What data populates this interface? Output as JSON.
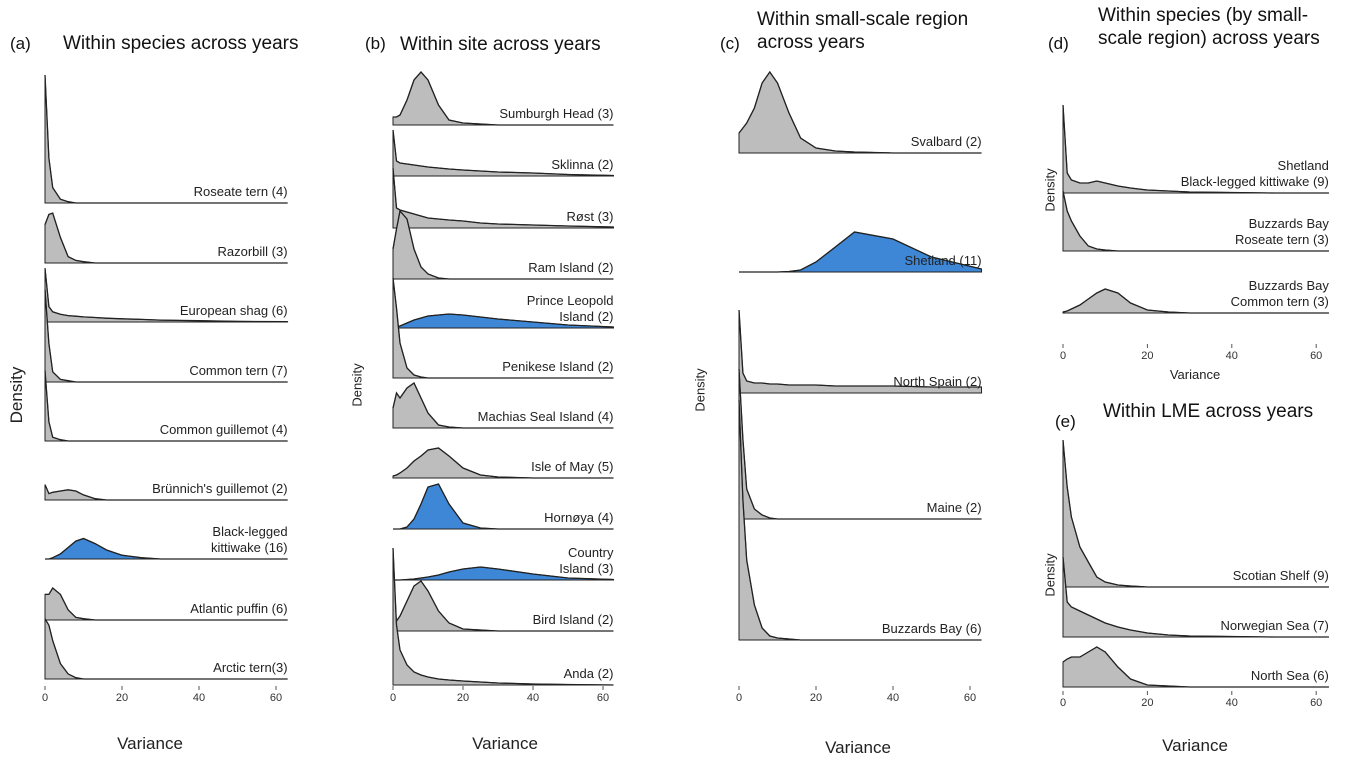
{
  "chart_data": [
    {
      "type": "ridgeline",
      "panel_label": "(a)",
      "title": "Within species across years",
      "x_label": "Variance",
      "y_label": "Density",
      "x": [
        0,
        1,
        2,
        4,
        6,
        8,
        10,
        13,
        16,
        20,
        25,
        30,
        40,
        50,
        63
      ],
      "xlim": [
        0,
        63
      ],
      "xticks": [
        0,
        20,
        40,
        60
      ],
      "series": [
        {
          "name": "Roseate tern (4)",
          "color": "#bdbdbd",
          "values": [
            1.0,
            0.35,
            0.12,
            0.03,
            0.01,
            0,
            0,
            0,
            0,
            0,
            0,
            0,
            0,
            0,
            0
          ]
        },
        {
          "name": "Razorbill (3)",
          "color": "#bdbdbd",
          "values": [
            0.3,
            0.38,
            0.39,
            0.2,
            0.05,
            0.02,
            0.01,
            0,
            0,
            0,
            0,
            0,
            0,
            0,
            0
          ]
        },
        {
          "name": "European shag (6)",
          "color": "#bdbdbd",
          "values": [
            0.42,
            0.12,
            0.08,
            0.06,
            0.05,
            0.045,
            0.04,
            0.035,
            0.03,
            0.025,
            0.02,
            0.015,
            0.01,
            0.005,
            0.002
          ]
        },
        {
          "name": "Common tern (7)",
          "color": "#bdbdbd",
          "values": [
            0.72,
            0.3,
            0.08,
            0.02,
            0.01,
            0,
            0,
            0,
            0,
            0,
            0,
            0,
            0,
            0,
            0
          ]
        },
        {
          "name": "Common guillemot (4)",
          "color": "#bdbdbd",
          "values": [
            0.55,
            0.15,
            0.03,
            0.01,
            0,
            0,
            0,
            0,
            0,
            0,
            0,
            0,
            0,
            0,
            0
          ]
        },
        {
          "name": "Brünnich's guillemot (2)",
          "color": "#bdbdbd",
          "values": [
            0.12,
            0.05,
            0.06,
            0.07,
            0.08,
            0.07,
            0.04,
            0.01,
            0,
            0,
            0,
            0,
            0,
            0,
            0
          ]
        },
        {
          "name": "Black-legged\nkittiwake (16)",
          "color": "#3d87d6",
          "values": [
            0,
            0,
            0.01,
            0.04,
            0.09,
            0.14,
            0.16,
            0.12,
            0.07,
            0.03,
            0.01,
            0,
            0,
            0,
            0
          ]
        },
        {
          "name": "Atlantic puffin (6)",
          "color": "#bdbdbd",
          "values": [
            0.2,
            0.2,
            0.25,
            0.2,
            0.08,
            0.02,
            0.01,
            0,
            0,
            0,
            0,
            0,
            0,
            0,
            0
          ]
        },
        {
          "name": "Arctic tern(3)",
          "color": "#bdbdbd",
          "values": [
            0.47,
            0.42,
            0.3,
            0.12,
            0.04,
            0.01,
            0,
            0,
            0,
            0,
            0,
            0,
            0,
            0,
            0
          ]
        }
      ]
    },
    {
      "type": "ridgeline",
      "panel_label": "(b)",
      "title": "Within site across years",
      "x_label": "Variance",
      "y_label": "Density",
      "x": [
        0,
        1,
        2,
        4,
        6,
        8,
        10,
        13,
        16,
        20,
        25,
        30,
        40,
        50,
        63
      ],
      "xlim": [
        0,
        63
      ],
      "xticks": [
        0,
        20,
        40,
        60
      ],
      "series": [
        {
          "name": "Sumburgh Head (3)",
          "color": "#bdbdbd",
          "values": [
            0.08,
            0.08,
            0.1,
            0.25,
            0.45,
            0.53,
            0.45,
            0.2,
            0.05,
            0.02,
            0.01,
            0,
            0,
            0,
            0
          ]
        },
        {
          "name": "Sklinna (2)",
          "color": "#bdbdbd",
          "values": [
            0.46,
            0.15,
            0.13,
            0.12,
            0.11,
            0.1,
            0.09,
            0.08,
            0.07,
            0.06,
            0.05,
            0.04,
            0.03,
            0.015,
            0.005
          ]
        },
        {
          "name": "Røst (3)",
          "color": "#bdbdbd",
          "values": [
            0.6,
            0.2,
            0.18,
            0.16,
            0.14,
            0.12,
            0.1,
            0.09,
            0.08,
            0.07,
            0.05,
            0.04,
            0.03,
            0.02,
            0.01
          ]
        },
        {
          "name": "Ram Island (2)",
          "color": "#bdbdbd",
          "values": [
            0.3,
            0.5,
            0.68,
            0.6,
            0.3,
            0.12,
            0.05,
            0.01,
            0,
            0,
            0,
            0,
            0,
            0,
            0
          ]
        },
        {
          "name": "Prince Leopold\nIsland (2)",
          "color": "#3d87d6",
          "values": [
            0,
            0.01,
            0.02,
            0.05,
            0.08,
            0.1,
            0.12,
            0.13,
            0.14,
            0.13,
            0.11,
            0.09,
            0.06,
            0.03,
            0.01
          ]
        },
        {
          "name": "Penikese Island (2)",
          "color": "#bdbdbd",
          "values": [
            1.0,
            0.7,
            0.35,
            0.1,
            0.03,
            0.01,
            0,
            0,
            0,
            0,
            0,
            0,
            0,
            0,
            0
          ]
        },
        {
          "name": "Machias Seal Island (4)",
          "color": "#bdbdbd",
          "values": [
            0.2,
            0.35,
            0.3,
            0.4,
            0.45,
            0.3,
            0.15,
            0.03,
            0.01,
            0,
            0,
            0,
            0,
            0,
            0
          ]
        },
        {
          "name": "Isle of May (5)",
          "color": "#bdbdbd",
          "values": [
            0.02,
            0.03,
            0.05,
            0.1,
            0.17,
            0.22,
            0.28,
            0.3,
            0.22,
            0.1,
            0.03,
            0.01,
            0,
            0,
            0
          ]
        },
        {
          "name": "Hornøya (4)",
          "color": "#3d87d6",
          "values": [
            0,
            0,
            0,
            0.02,
            0.1,
            0.25,
            0.42,
            0.45,
            0.25,
            0.06,
            0.01,
            0,
            0,
            0,
            0
          ]
        },
        {
          "name": "Country\nIsland (3)",
          "color": "#3d87d6",
          "values": [
            0,
            0,
            0,
            0.005,
            0.01,
            0.02,
            0.03,
            0.05,
            0.08,
            0.11,
            0.13,
            0.11,
            0.06,
            0.02,
            0.005
          ]
        },
        {
          "name": "Bird Island (2)",
          "color": "#bdbdbd",
          "values": [
            0.05,
            0.1,
            0.15,
            0.3,
            0.45,
            0.5,
            0.4,
            0.2,
            0.08,
            0.02,
            0.01,
            0,
            0,
            0,
            0
          ]
        },
        {
          "name": "Anda (2)",
          "color": "#bdbdbd",
          "values": [
            1.37,
            0.6,
            0.35,
            0.2,
            0.13,
            0.1,
            0.08,
            0.06,
            0.05,
            0.04,
            0.03,
            0.02,
            0.01,
            0.005,
            0
          ]
        }
      ]
    },
    {
      "type": "ridgeline",
      "panel_label": "(c)",
      "title": "Within small-scale region\nacross years",
      "x_label": "Variance",
      "y_label": "Density",
      "x": [
        0,
        1,
        2,
        4,
        6,
        8,
        10,
        13,
        16,
        20,
        25,
        30,
        40,
        50,
        63
      ],
      "xlim": [
        0,
        63
      ],
      "xticks": [
        0,
        20,
        40,
        60
      ],
      "series": [
        {
          "name": "Svalbard (2)",
          "color": "#bdbdbd",
          "values": [
            0.2,
            0.25,
            0.3,
            0.45,
            0.7,
            0.81,
            0.7,
            0.4,
            0.15,
            0.05,
            0.02,
            0.01,
            0,
            0,
            0
          ]
        },
        {
          "name": "Shetland (11)",
          "color": "#3d87d6",
          "values": [
            0,
            0,
            0,
            0,
            0,
            0,
            0,
            0.005,
            0.02,
            0.1,
            0.25,
            0.4,
            0.33,
            0.15,
            0.03
          ]
        },
        {
          "name": "North Spain (2)",
          "color": "#bdbdbd",
          "values": [
            0.83,
            0.2,
            0.12,
            0.1,
            0.1,
            0.09,
            0.09,
            0.08,
            0.08,
            0.08,
            0.07,
            0.07,
            0.07,
            0.06,
            0.06
          ]
        },
        {
          "name": "Maine (2)",
          "color": "#bdbdbd",
          "values": [
            1.5,
            0.8,
            0.3,
            0.1,
            0.04,
            0.01,
            0,
            0,
            0,
            0,
            0,
            0,
            0,
            0,
            0
          ]
        },
        {
          "name": "Buzzards Bay (6)",
          "color": "#bdbdbd",
          "values": [
            2.4,
            1.4,
            0.8,
            0.35,
            0.12,
            0.04,
            0.02,
            0.01,
            0,
            0,
            0,
            0,
            0,
            0,
            0
          ]
        }
      ]
    },
    {
      "type": "ridgeline",
      "panel_label": "(d)",
      "title": "Within species (by small-\nscale region) across years",
      "x_label": "Variance",
      "y_label": "Density",
      "x": [
        0,
        1,
        2,
        4,
        6,
        8,
        10,
        13,
        16,
        20,
        25,
        30,
        40,
        50,
        63
      ],
      "xlim": [
        0,
        63
      ],
      "xticks": [
        0,
        20,
        40,
        60
      ],
      "series": [
        {
          "name": "Shetland\nBlack-legged kittiwake (9)",
          "color": "#bdbdbd",
          "values": [
            0.88,
            0.2,
            0.13,
            0.1,
            0.1,
            0.12,
            0.1,
            0.07,
            0.05,
            0.03,
            0.02,
            0.01,
            0.005,
            0,
            0
          ]
        },
        {
          "name": "Buzzards Bay\nRoseate tern (3)",
          "color": "#bdbdbd",
          "values": [
            0.6,
            0.4,
            0.3,
            0.15,
            0.05,
            0.02,
            0.01,
            0,
            0,
            0,
            0,
            0,
            0,
            0,
            0
          ]
        },
        {
          "name": "Buzzards Bay\nCommon tern (3)",
          "color": "#bdbdbd",
          "values": [
            0.01,
            0.02,
            0.04,
            0.08,
            0.14,
            0.2,
            0.24,
            0.2,
            0.1,
            0.03,
            0.01,
            0,
            0,
            0,
            0
          ]
        }
      ]
    },
    {
      "type": "ridgeline",
      "panel_label": "(e)",
      "title": "Within LME across years",
      "x_label": "Variance",
      "y_label": "Density",
      "x": [
        0,
        1,
        2,
        4,
        6,
        8,
        10,
        13,
        16,
        20,
        25,
        30,
        40,
        50,
        63
      ],
      "xlim": [
        0,
        63
      ],
      "xticks": [
        0,
        20,
        40,
        60
      ],
      "series": [
        {
          "name": "Scotian Shelf (9)",
          "color": "#bdbdbd",
          "values": [
            1.47,
            1.0,
            0.7,
            0.4,
            0.25,
            0.1,
            0.05,
            0.02,
            0.01,
            0,
            0,
            0,
            0,
            0,
            0
          ]
        },
        {
          "name": "Norwegian Sea (7)",
          "color": "#bdbdbd",
          "values": [
            0.8,
            0.35,
            0.3,
            0.26,
            0.22,
            0.18,
            0.14,
            0.1,
            0.07,
            0.04,
            0.02,
            0.01,
            0.005,
            0,
            0
          ]
        },
        {
          "name": "North Sea (6)",
          "color": "#bdbdbd",
          "values": [
            0.25,
            0.28,
            0.3,
            0.3,
            0.35,
            0.4,
            0.35,
            0.2,
            0.08,
            0.02,
            0.01,
            0,
            0,
            0,
            0
          ]
        }
      ]
    }
  ]
}
